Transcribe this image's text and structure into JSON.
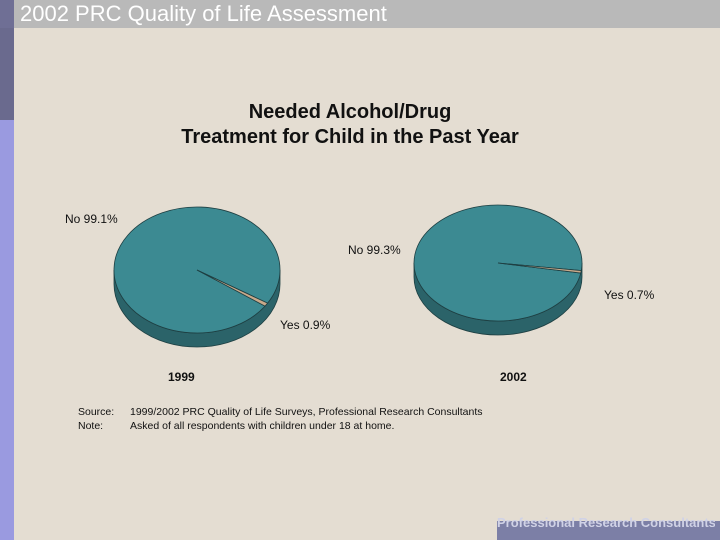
{
  "header": {
    "title": "2002 PRC Quality of Life Assessment"
  },
  "chart_data": {
    "type": "pie",
    "title_lines": [
      "Needed Alcohol/Drug",
      "Treatment for Child in the Past Year"
    ],
    "pies": [
      {
        "year": "1999",
        "slices": [
          {
            "name": "No",
            "value": 99.1,
            "label": "No  99.1%",
            "color": "#3c8a92"
          },
          {
            "name": "Yes",
            "value": 0.9,
            "label": "Yes  0.9%",
            "color": "#c9a98a"
          }
        ]
      },
      {
        "year": "2002",
        "slices": [
          {
            "name": "No",
            "value": 99.3,
            "label": "No  99.3%",
            "color": "#3c8a92"
          },
          {
            "name": "Yes",
            "value": 0.7,
            "label": "Yes  0.7%",
            "color": "#c9a98a"
          }
        ]
      }
    ],
    "notes": [
      {
        "key": "Source:",
        "text": "1999/2002 PRC Quality of Life Surveys, Professional Research Consultants"
      },
      {
        "key": "Note:",
        "text": "Asked of all respondents with children under 18 at home."
      }
    ]
  },
  "footer": {
    "text": "Professional Research Consultants"
  }
}
